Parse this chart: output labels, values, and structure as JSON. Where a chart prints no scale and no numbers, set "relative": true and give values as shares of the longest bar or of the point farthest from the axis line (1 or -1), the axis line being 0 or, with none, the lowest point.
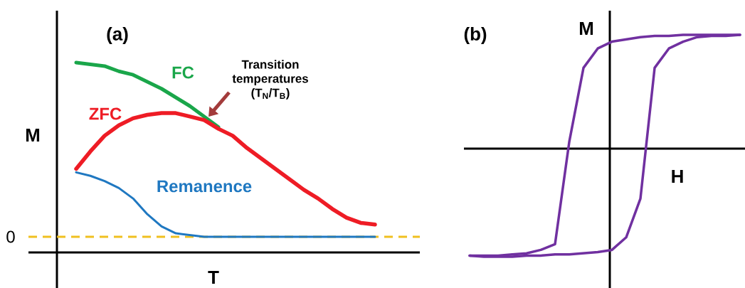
{
  "chart_data": [
    {
      "type": "line",
      "title": "(a)",
      "xlabel": "T",
      "ylabel": "M",
      "relative": true,
      "categories": [
        null,
        null,
        null,
        null,
        null,
        null,
        null,
        null,
        null,
        null,
        null,
        null,
        null,
        null,
        null,
        null,
        null,
        null,
        null,
        null,
        null,
        null
      ],
      "series": [
        {
          "name": "FC",
          "color": "#1aa64a",
          "values": [
            1.0,
            0.99,
            0.98,
            0.95,
            0.93,
            0.89,
            0.85,
            0.8,
            0.75,
            0.69,
            0.63,
            null,
            null,
            null,
            null,
            null,
            null,
            null,
            null,
            null,
            null,
            null
          ]
        },
        {
          "name": "ZFC",
          "color": "#ee1c25",
          "values": [
            0.39,
            0.49,
            0.58,
            0.64,
            0.68,
            0.7,
            0.71,
            0.71,
            0.69,
            0.67,
            0.62,
            0.58,
            0.51,
            0.45,
            0.39,
            0.33,
            0.27,
            0.22,
            0.16,
            0.11,
            0.08,
            0.07
          ]
        },
        {
          "name": "Remanence",
          "color": "#1f78c1",
          "values": [
            0.37,
            0.35,
            0.32,
            0.28,
            0.22,
            0.13,
            0.06,
            0.02,
            0.01,
            0.0,
            0.0,
            0.0,
            0.0,
            0.0,
            0.0,
            0.0,
            0.0,
            0.0,
            0.0,
            0.0,
            0.0,
            0.0
          ]
        }
      ],
      "ref_lines": [
        {
          "axis": "y",
          "value": 0,
          "label": "0",
          "color": "#f0c020",
          "line_style": "dashed"
        }
      ],
      "annotations": [
        "Transition temperatures (T$_{N}$/T$_{B}$)"
      ]
    },
    {
      "type": "line",
      "title": "(b)",
      "xlabel": "H",
      "ylabel": "M",
      "relative": true,
      "categories": [
        null,
        null,
        null,
        null,
        null,
        null,
        null,
        null,
        null,
        null,
        null,
        null,
        null,
        null,
        null,
        null,
        null,
        null,
        null,
        null
      ],
      "series": [
        {
          "color": "#7030a0",
          "values": [
            -0.94,
            -0.94,
            -0.94,
            -0.93,
            -0.92,
            -0.89,
            -0.84,
            0.06,
            0.71,
            0.88,
            0.94,
            0.96,
            0.98,
            0.99,
            0.99,
            1.0,
            1.0,
            1.0,
            1.0,
            1.0
          ]
        },
        {
          "color": "#7030a0",
          "values": [
            -0.94,
            -0.95,
            -0.95,
            -0.95,
            -0.94,
            -0.94,
            -0.93,
            -0.93,
            -0.92,
            -0.91,
            -0.89,
            -0.78,
            -0.44,
            0.71,
            0.88,
            0.94,
            0.98,
            0.99,
            0.99,
            1.0
          ]
        }
      ]
    }
  ]
}
